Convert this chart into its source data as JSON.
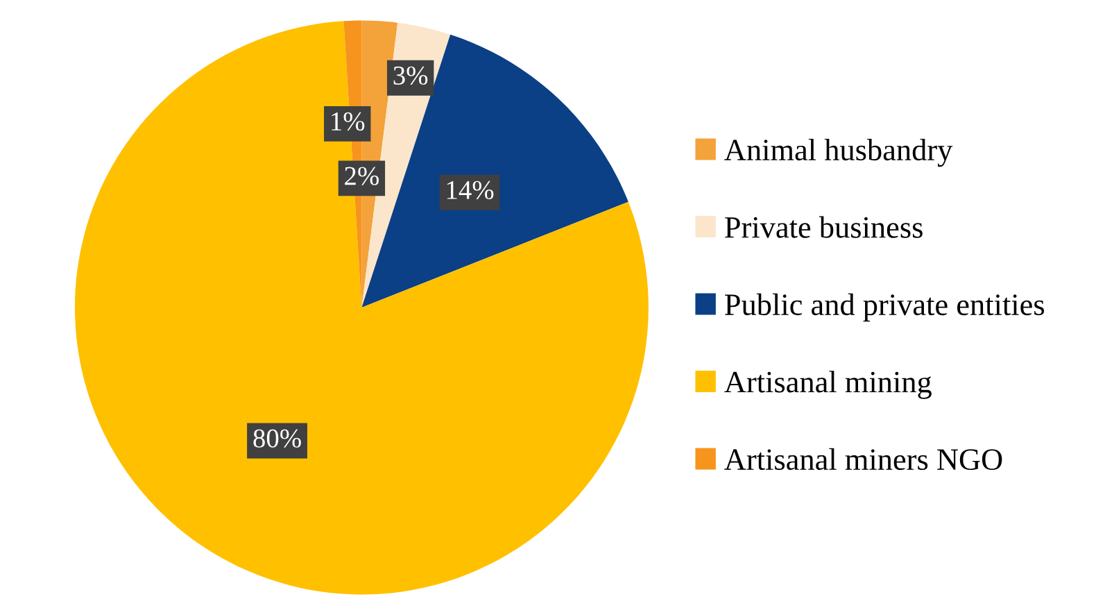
{
  "chart_data": {
    "type": "pie",
    "categories": [
      "Animal husbandry",
      "Private business",
      "Public and private entities",
      "Artisanal mining",
      "Artisanal miners NGO"
    ],
    "values": [
      2,
      3,
      14,
      80,
      1
    ],
    "colors": [
      "#f4a23a",
      "#fbe6cc",
      "#0b3f86",
      "#ffc000",
      "#f7941d"
    ],
    "value_labels": [
      "2%",
      "3%",
      "14%",
      "80%",
      "1%"
    ],
    "legend": "right"
  }
}
